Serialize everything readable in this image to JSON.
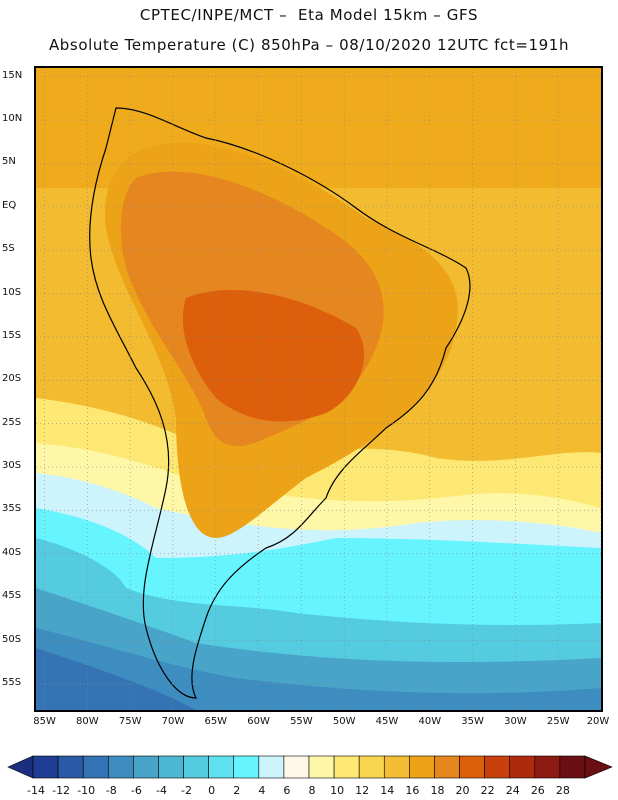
{
  "header": {
    "title_line1": "CPTEC/INPE/MCT –  Eta Model 15km – GFS",
    "title_line2": "Absolute Temperature (C) 850hPa – 08/10/2020 12UTC fct=191h"
  },
  "map": {
    "lat_labels": [
      "15N",
      "10N",
      "5N",
      "EQ",
      "5S",
      "10S",
      "15S",
      "20S",
      "25S",
      "30S",
      "35S",
      "40S",
      "45S",
      "50S",
      "55S"
    ],
    "lon_labels": [
      "85W",
      "80W",
      "75W",
      "70W",
      "65W",
      "60W",
      "55W",
      "50W",
      "45W",
      "40W",
      "35W",
      "30W",
      "25W",
      "20W"
    ],
    "extent": {
      "lon_min": -86,
      "lon_max": -20,
      "lat_min": -58,
      "lat_max": 16
    },
    "grid": "dotted"
  },
  "colorbar": {
    "labels": [
      "-14",
      "-12",
      "-10",
      "-8",
      "-6",
      "-4",
      "-2",
      "0",
      "2",
      "4",
      "6",
      "8",
      "10",
      "12",
      "14",
      "16",
      "18",
      "20",
      "22",
      "24",
      "26",
      "28"
    ],
    "colors": [
      "#1f3d94",
      "#2b5aa6",
      "#3474b4",
      "#3e8dc0",
      "#48a4c9",
      "#4db8d2",
      "#55cbe0",
      "#5fe0f0",
      "#66f5ff",
      "#cdf3fc",
      "#fff8e8",
      "#fff7a8",
      "#fde874",
      "#f9d44f",
      "#f3bd35",
      "#eda317",
      "#e5861e",
      "#dd5f0b",
      "#c8410c",
      "#ae2a0d",
      "#8c1a10",
      "#6a0f14"
    ]
  }
}
